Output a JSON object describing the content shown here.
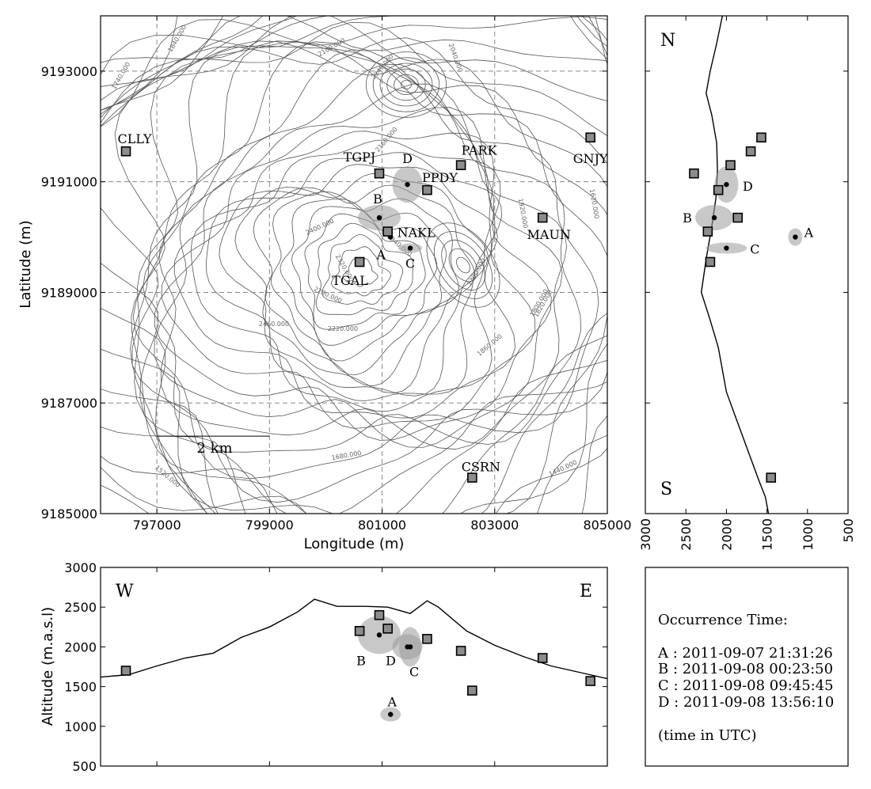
{
  "chart_data": [
    {
      "type": "scatter",
      "panel": "map",
      "xlabel": "Longitude (m)",
      "ylabel": "Latitude (m)",
      "xlim": [
        796000,
        805000
      ],
      "ylim": [
        9185000,
        9194000
      ],
      "xticks": [
        797000,
        799000,
        801000,
        803000,
        805000
      ],
      "yticks": [
        9185000,
        9187000,
        9189000,
        9191000,
        9193000
      ],
      "xticklabels": [
        "797000",
        "799000",
        "801000",
        "803000",
        "805000"
      ],
      "yticklabels": [
        "9185000",
        "9187000",
        "9189000",
        "9191000",
        "9193000"
      ],
      "grid": true,
      "scalebar": {
        "label": "2 km",
        "from": 797000,
        "to": 799000,
        "y": 9186400
      },
      "stations": [
        {
          "name": "CLLY",
          "x": 796450,
          "y": 9191550
        },
        {
          "name": "TGPJ",
          "x": 800950,
          "y": 9191150
        },
        {
          "name": "PPDY",
          "x": 801800,
          "y": 9190850
        },
        {
          "name": "PARK",
          "x": 802400,
          "y": 9191300
        },
        {
          "name": "GNJY",
          "x": 804700,
          "y": 9191800
        },
        {
          "name": "NAKL",
          "x": 801100,
          "y": 9190100
        },
        {
          "name": "TGAL",
          "x": 800600,
          "y": 9189550
        },
        {
          "name": "MAUN",
          "x": 803850,
          "y": 9190350
        },
        {
          "name": "CSRN",
          "x": 802600,
          "y": 9185650
        }
      ],
      "events": [
        {
          "name": "A",
          "x": 801150,
          "y": 9190000
        },
        {
          "name": "B",
          "x": 800950,
          "y": 9190350
        },
        {
          "name": "C",
          "x": 801500,
          "y": 9189800
        },
        {
          "name": "D",
          "x": 801450,
          "y": 9190950
        }
      ],
      "contour_labels": [
        "1740.000",
        "1840.000",
        "2100.000",
        "2240.000",
        "2040.000",
        "2160.000",
        "2400.000",
        "2340.000",
        "2320.000",
        "2300.000",
        "2280.000",
        "2460.000",
        "2220.000",
        "1920.000",
        "1820.000",
        "1620.000",
        "1800.000",
        "1860.000",
        "1680.000",
        "1520.000",
        "1440.000"
      ]
    },
    {
      "type": "scatter",
      "panel": "north-south section",
      "xlim": [
        3000,
        500
      ],
      "ylim": [
        9185000,
        9194000
      ],
      "xticks": [
        3000,
        2500,
        2000,
        1500,
        1000,
        500
      ],
      "xticklabels": [
        "3000",
        "2500",
        "2000",
        "1500",
        "1000",
        "500"
      ],
      "corner_top": "N",
      "corner_bottom": "S",
      "profile_alt": [
        2050,
        2120,
        2200,
        2250,
        2180,
        2120,
        2110,
        2130,
        2180,
        2250,
        2310,
        2200,
        2100,
        2050,
        2000,
        1900,
        1800,
        1700,
        1600,
        1520,
        1480
      ],
      "profile_lat": [
        9194000,
        9193500,
        9193000,
        9192600,
        9192200,
        9191700,
        9191200,
        9190700,
        9190200,
        9189600,
        9189000,
        9188500,
        9188000,
        9187600,
        9187200,
        9186800,
        9186400,
        9186000,
        9185600,
        9185300,
        9185000
      ],
      "stations_alt": [
        1700,
        2400,
        2100,
        1950,
        1570,
        2230,
        2200,
        1860,
        1450
      ],
      "stations_lat": [
        9191550,
        9191150,
        9190850,
        9191300,
        9191800,
        9190100,
        9189550,
        9190350,
        9185650
      ],
      "events_alt": [
        1150,
        2150,
        2000,
        2000
      ],
      "events_lat": [
        9190000,
        9190350,
        9189800,
        9190950
      ]
    },
    {
      "type": "scatter",
      "panel": "west-east section",
      "ylabel": "Altitude (m.a.s.l)",
      "xlim": [
        796000,
        805000
      ],
      "ylim": [
        500,
        3000
      ],
      "yticks": [
        500,
        1000,
        1500,
        2000,
        2500,
        3000
      ],
      "yticklabels": [
        "500",
        "1000",
        "1500",
        "2000",
        "2500",
        "3000"
      ],
      "corner_left": "W",
      "corner_right": "E",
      "profile_lon": [
        796000,
        796500,
        797000,
        797500,
        798000,
        798500,
        799000,
        799500,
        799800,
        800200,
        800700,
        801100,
        801500,
        801800,
        802000,
        802500,
        803000,
        803500,
        804000,
        804500,
        805000
      ],
      "profile_alt": [
        1620,
        1650,
        1760,
        1860,
        1920,
        2120,
        2250,
        2440,
        2600,
        2510,
        2510,
        2500,
        2420,
        2580,
        2500,
        2200,
        2020,
        1880,
        1760,
        1680,
        1600
      ],
      "stations_lon": [
        796450,
        800950,
        801800,
        802400,
        804700,
        801100,
        800600,
        803850,
        802600
      ],
      "stations_alt": [
        1700,
        2400,
        2100,
        1950,
        1570,
        2230,
        2200,
        1860,
        1450
      ],
      "events_lon": [
        801150,
        800950,
        801500,
        801450
      ],
      "events_alt": [
        1150,
        2150,
        2000,
        2000
      ]
    }
  ],
  "legend": {
    "heading": "Occurrence Time:",
    "entries": [
      "A : 2011-09-07 21:31:26",
      "B : 2011-09-08 00:23:50",
      "C : 2011-09-08 09:45:45",
      "D : 2011-09-08 13:56:10"
    ],
    "footnote": "(time in UTC)"
  }
}
